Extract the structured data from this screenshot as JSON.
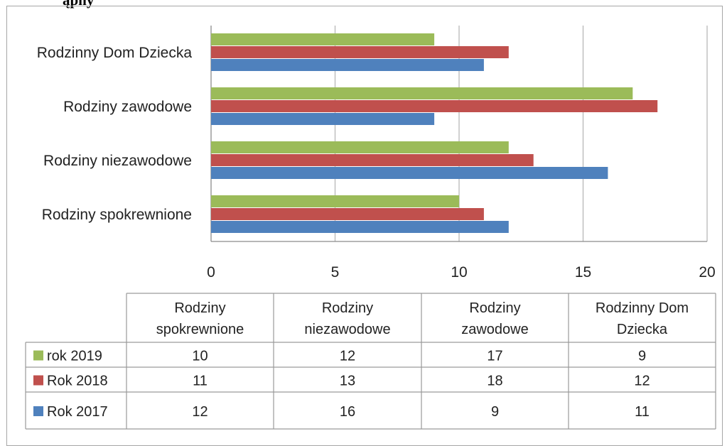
{
  "top_text": "ąpny",
  "chart_data": {
    "type": "bar",
    "orientation": "horizontal",
    "categories": [
      "Rodziny spokrewnione",
      "Rodziny niezawodowe",
      "Rodziny zawodowe",
      "Rodzinny Dom Dziecka"
    ],
    "category_labels_table": [
      [
        "Rodziny",
        "spokrewnione"
      ],
      [
        "Rodziny",
        "niezawodowe"
      ],
      [
        "Rodziny",
        "zawodowe"
      ],
      [
        "Rodzinny Dom",
        "Dziecka"
      ]
    ],
    "series": [
      {
        "name": "rok 2019",
        "color": "#9bbb59",
        "values": [
          10,
          12,
          17,
          9
        ]
      },
      {
        "name": "Rok 2018",
        "color": "#c0504d",
        "values": [
          11,
          13,
          18,
          12
        ]
      },
      {
        "name": "Rok 2017",
        "color": "#4f81bd",
        "values": [
          12,
          16,
          9,
          11
        ]
      }
    ],
    "xlim": [
      0,
      20
    ],
    "xticks": [
      0,
      5,
      10,
      15,
      20
    ],
    "grid": true,
    "legend": "data-table"
  }
}
